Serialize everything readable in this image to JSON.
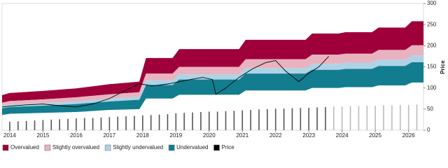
{
  "chart_data": {
    "type": "valuation-bands",
    "x": [
      2013.77,
      2014,
      2015,
      2016,
      2017,
      2017.9,
      2018.1,
      2018.9,
      2019.1,
      2020.9,
      2021.1,
      2022.9,
      2023.1,
      2023.9,
      2024.1,
      2024.9,
      2025.1,
      2025.9,
      2026.1,
      2026.45
    ],
    "series": [
      {
        "name": "Overvalued",
        "color": "#a0003a",
        "values": [
          83,
          88,
          93,
          99,
          109,
          115,
          171,
          171,
          192,
          192,
          214,
          214,
          229,
          229,
          232,
          232,
          243,
          243,
          258,
          258
        ]
      },
      {
        "name": "Slightly overvalued",
        "color": "#e8b3bf",
        "values": [
          65,
          69,
          73,
          78,
          85,
          90,
          134,
          134,
          150,
          150,
          168,
          168,
          179,
          179,
          181,
          181,
          190,
          190,
          201,
          201
        ]
      },
      {
        "name": "Slightly undervalued",
        "color": "#aed3e6",
        "values": [
          57,
          61,
          64,
          68,
          75,
          79,
          118,
          118,
          132,
          132,
          147,
          147,
          157,
          157,
          160,
          160,
          167,
          167,
          177,
          177
        ]
      },
      {
        "name": "Undervalued",
        "color": "#127d8f",
        "values": [
          52,
          55,
          58,
          62,
          68,
          72,
          107,
          107,
          120,
          120,
          134,
          134,
          143,
          143,
          145,
          145,
          152,
          152,
          161,
          161
        ],
        "lower": [
          36,
          39,
          41,
          43,
          48,
          50,
          75,
          75,
          84,
          84,
          94,
          94,
          100,
          100,
          102,
          102,
          106,
          106,
          113,
          113
        ]
      },
      {
        "name": "Price",
        "color": "#000000",
        "x": [
          2013.77,
          2014,
          2014.5,
          2015,
          2015.5,
          2016,
          2016.5,
          2017,
          2017.5,
          2017.9,
          2018.3,
          2018.8,
          2019.3,
          2019.8,
          2020.1,
          2020.2,
          2020.5,
          2020.9,
          2021.3,
          2021.7,
          2022,
          2022.3,
          2022.7,
          2023,
          2023.3,
          2023.6
        ],
        "values": [
          55,
          57,
          60,
          62,
          58,
          55,
          62,
          75,
          95,
          110,
          105,
          110,
          118,
          125,
          120,
          85,
          100,
          125,
          145,
          160,
          165,
          140,
          115,
          135,
          150,
          175
        ]
      }
    ],
    "bars": [
      {
        "color": "#555555",
        "x": [
          2014,
          2014.25,
          2014.5,
          2014.75,
          2015,
          2015.25,
          2015.5,
          2015.75,
          2016,
          2016.25,
          2016.5,
          2016.75,
          2017,
          2017.25,
          2017.5,
          2017.75,
          2018,
          2018.25,
          2018.5,
          2018.75,
          2019,
          2019.25,
          2019.5,
          2019.75,
          2020,
          2020.25,
          2020.5,
          2020.75,
          2021,
          2021.25,
          2021.5,
          2021.75,
          2022,
          2022.25,
          2022.5,
          2022.75,
          2023,
          2023.25,
          2023.5
        ],
        "values": [
          20,
          21,
          22,
          23,
          24,
          25,
          26,
          27,
          28,
          29,
          29,
          30,
          31,
          32,
          33,
          34,
          35,
          36,
          37,
          38,
          40,
          41,
          42,
          43,
          44,
          44,
          45,
          46,
          47,
          48,
          49,
          50,
          51,
          51,
          52,
          53,
          53,
          54,
          55
        ]
      },
      {
        "color": "#bbbbbb",
        "x": [
          2023.75,
          2024,
          2024.25,
          2024.5,
          2024.75,
          2025,
          2025.25,
          2025.5,
          2025.75,
          2026,
          2026.25,
          2026.5
        ],
        "values": [
          56,
          56,
          57,
          57,
          58,
          58,
          59,
          59,
          60,
          60,
          61,
          62
        ]
      }
    ],
    "xlim": [
      2013.77,
      2026.45
    ],
    "xticks": [
      2014,
      2015,
      2016,
      2017,
      2018,
      2019,
      2020,
      2021,
      2022,
      2023,
      2024,
      2025,
      2026
    ],
    "ylim": [
      0,
      300
    ],
    "yticks": [
      0,
      50,
      100,
      150,
      200,
      250,
      300
    ],
    "ylabel": "Price",
    "legend": "bottom"
  }
}
